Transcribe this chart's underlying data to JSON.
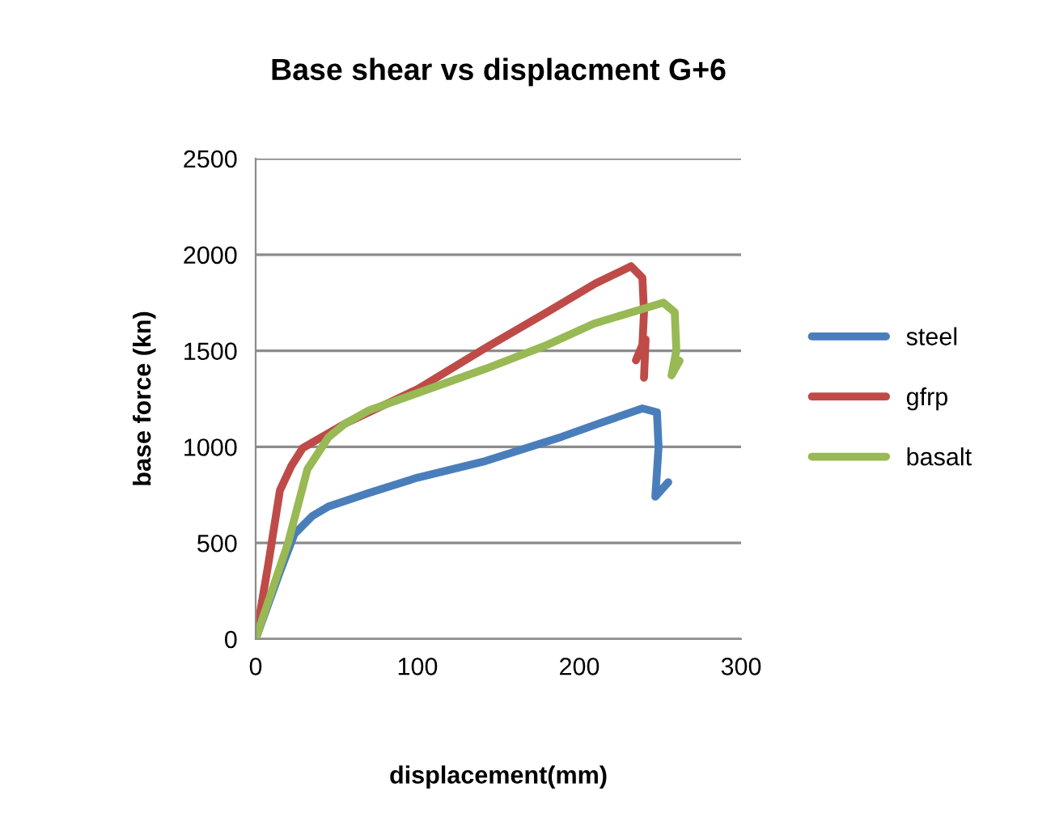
{
  "chart_data": {
    "type": "line",
    "title": "Base shear vs displacment G+6",
    "xlabel": "displacement(mm)",
    "ylabel": "base force (kn)",
    "xlim": [
      0,
      300
    ],
    "xticks": [
      0,
      100,
      200,
      300
    ],
    "ylim": [
      0,
      2500
    ],
    "yticks": [
      0,
      500,
      1000,
      1500,
      2000,
      2500
    ],
    "grid": "y",
    "legend": "right",
    "marker": "none",
    "line_style": "solid",
    "series": [
      {
        "name": "steel",
        "color": "#4a7ebb",
        "x": [
          0,
          15,
          24,
          35,
          45,
          70,
          100,
          142,
          189,
          215,
          239,
          248,
          249,
          247,
          255
        ],
        "values": [
          0,
          350,
          547,
          640,
          690,
          760,
          840,
          926,
          1052,
          1130,
          1200,
          1180,
          1000,
          741,
          816
        ]
      },
      {
        "name": "gfrp",
        "color": "#be4b48",
        "x": [
          0,
          8,
          15,
          22,
          29,
          55,
          100,
          142,
          180,
          210,
          232,
          239,
          240,
          239,
          235,
          241,
          240
        ],
        "values": [
          0,
          400,
          774,
          900,
          993,
          1120,
          1300,
          1515,
          1700,
          1850,
          1940,
          1880,
          1700,
          1530,
          1450,
          1560,
          1360
        ]
      },
      {
        "name": "basalt",
        "color": "#98b954",
        "x": [
          0,
          20,
          32,
          45,
          55,
          70,
          100,
          142,
          180,
          209,
          240,
          252,
          259,
          260,
          257,
          262
        ],
        "values": [
          0,
          500,
          884,
          1050,
          1120,
          1190,
          1280,
          1406,
          1530,
          1641,
          1720,
          1750,
          1700,
          1500,
          1372,
          1448
        ]
      }
    ]
  }
}
